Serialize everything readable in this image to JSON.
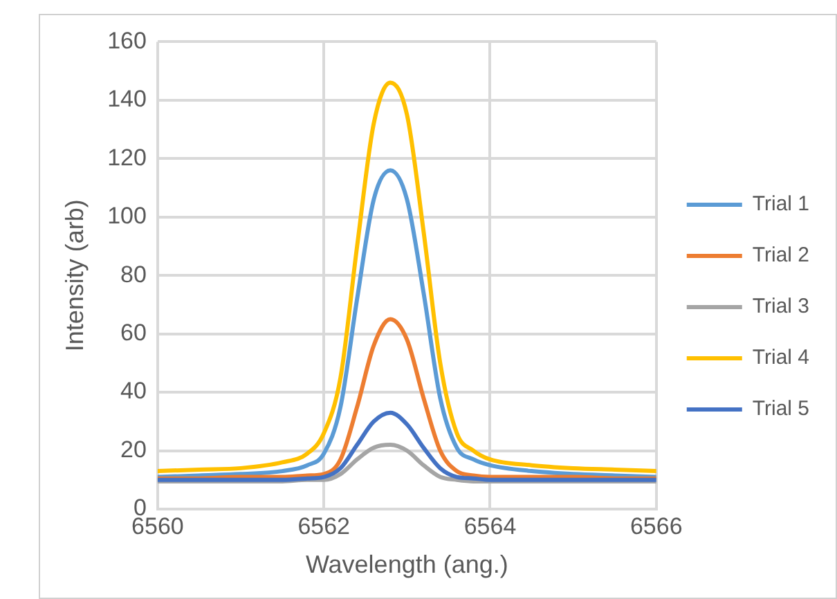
{
  "chart_data": {
    "type": "line",
    "xlabel": "Wavelength (ang.)",
    "ylabel": "Intensity (arb)",
    "x": [
      6560,
      6560.5,
      6561,
      6561.5,
      6561.8,
      6562,
      6562.2,
      6562.4,
      6562.6,
      6562.8,
      6563,
      6563.2,
      6563.4,
      6563.6,
      6563.8,
      6564,
      6564.5,
      6565,
      6565.5,
      6566
    ],
    "series": [
      {
        "name": "Trial 1",
        "color": "#5b9bd5",
        "values": [
          11,
          11.5,
          12,
          13,
          15,
          19,
          35,
          72,
          106,
          116,
          106,
          74,
          38,
          21,
          17,
          15,
          13,
          12,
          11.5,
          11
        ]
      },
      {
        "name": "Trial 2",
        "color": "#ed7d31",
        "values": [
          10.5,
          10.5,
          11,
          11,
          11.5,
          12,
          17,
          35,
          56,
          65,
          58,
          38,
          20,
          13,
          11.5,
          11,
          11,
          11,
          10.5,
          10.5
        ]
      },
      {
        "name": "Trial 3",
        "color": "#a5a5a5",
        "values": [
          9.5,
          9.5,
          9.5,
          9.5,
          10,
          10,
          12,
          17,
          21,
          22,
          20,
          15,
          11,
          10,
          9.5,
          9.5,
          9.5,
          9.5,
          9.5,
          9.5
        ]
      },
      {
        "name": "Trial 4",
        "color": "#ffc000",
        "values": [
          13,
          13.5,
          14,
          16,
          19,
          26,
          45,
          90,
          132,
          146,
          135,
          95,
          50,
          26,
          20,
          17,
          15,
          14,
          13.5,
          13
        ]
      },
      {
        "name": "Trial 5",
        "color": "#4472c4",
        "values": [
          10,
          10,
          10,
          10,
          10.5,
          11,
          14,
          22,
          30,
          33,
          29,
          21,
          14,
          11,
          10.5,
          10,
          10,
          10,
          10,
          10
        ]
      }
    ],
    "xlim": [
      6560,
      6566
    ],
    "xticks": [
      6560,
      6562,
      6564,
      6566
    ],
    "ylim": [
      0,
      160
    ],
    "yticks": [
      0,
      20,
      40,
      60,
      80,
      100,
      120,
      140,
      160
    ],
    "grid": true,
    "legend": "right",
    "marker": "none",
    "line_style": "solid"
  }
}
